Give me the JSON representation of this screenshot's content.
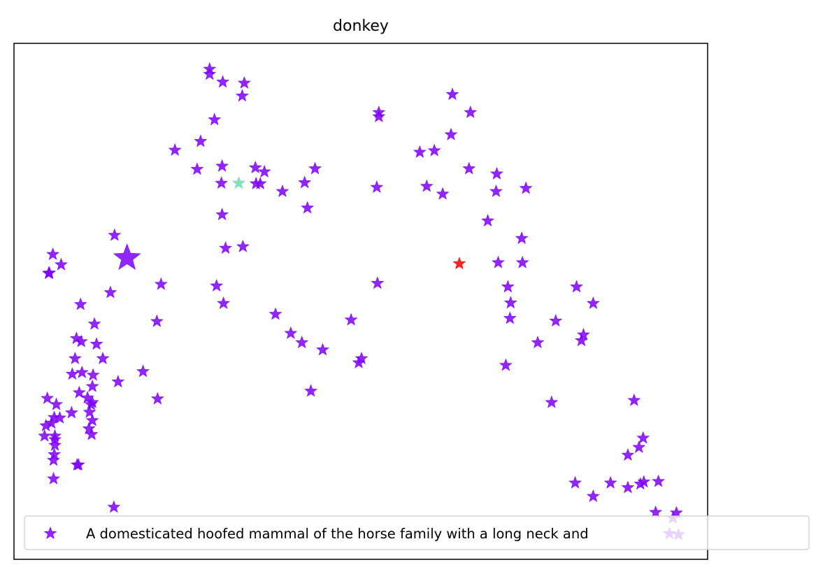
{
  "chart_data": {
    "type": "scatter",
    "title": "donkey",
    "xlabel": "",
    "ylabel": "",
    "ticks_visible": false,
    "legend_placement": "lower center",
    "xlim": [
      0,
      100
    ],
    "ylim": [
      0,
      100
    ],
    "series": [
      {
        "name": "A domesticated hoofed mammal of the horse family with a long neck and",
        "marker": "star",
        "color": "#7f00ff",
        "points": [
          [
            28.2,
            95.0
          ],
          [
            28.2,
            94.0
          ],
          [
            30.1,
            92.5
          ],
          [
            33.2,
            92.3
          ],
          [
            32.9,
            89.8
          ],
          [
            28.9,
            85.2
          ],
          [
            23.2,
            79.3
          ],
          [
            26.9,
            81.0
          ],
          [
            26.4,
            75.6
          ],
          [
            30.0,
            76.2
          ],
          [
            29.9,
            72.9
          ],
          [
            32.4,
            72.9
          ],
          [
            34.8,
            75.9
          ],
          [
            36.1,
            75.1
          ],
          [
            34.9,
            72.8
          ],
          [
            35.5,
            72.8
          ],
          [
            38.7,
            71.3
          ],
          [
            41.9,
            73.0
          ],
          [
            43.4,
            75.7
          ],
          [
            42.3,
            68.1
          ],
          [
            30.0,
            66.8
          ],
          [
            30.5,
            60.3
          ],
          [
            33.0,
            60.6
          ],
          [
            29.2,
            53.0
          ],
          [
            30.2,
            49.6
          ],
          [
            37.7,
            47.5
          ],
          [
            41.5,
            42.0
          ],
          [
            39.9,
            43.8
          ],
          [
            44.5,
            40.6
          ],
          [
            52.3,
            72.1
          ],
          [
            52.6,
            86.6
          ],
          [
            52.6,
            85.8
          ],
          [
            63.2,
            90.1
          ],
          [
            65.8,
            86.6
          ],
          [
            63.0,
            82.3
          ],
          [
            58.5,
            78.9
          ],
          [
            60.6,
            79.2
          ],
          [
            65.6,
            75.7
          ],
          [
            69.6,
            74.7
          ],
          [
            69.5,
            71.3
          ],
          [
            73.8,
            71.9
          ],
          [
            59.5,
            72.3
          ],
          [
            61.8,
            70.8
          ],
          [
            68.3,
            65.6
          ],
          [
            73.2,
            62.2
          ],
          [
            69.8,
            57.5
          ],
          [
            73.3,
            57.5
          ],
          [
            71.2,
            52.8
          ],
          [
            71.6,
            49.7
          ],
          [
            71.5,
            46.7
          ],
          [
            75.5,
            42.0
          ],
          [
            78.1,
            46.2
          ],
          [
            81.1,
            52.8
          ],
          [
            83.5,
            49.6
          ],
          [
            82.1,
            43.5
          ],
          [
            81.8,
            42.4
          ],
          [
            70.9,
            37.6
          ],
          [
            77.5,
            30.4
          ],
          [
            89.4,
            30.8
          ],
          [
            90.7,
            23.5
          ],
          [
            90.1,
            21.7
          ],
          [
            88.5,
            20.2
          ],
          [
            80.9,
            14.8
          ],
          [
            83.5,
            12.2
          ],
          [
            86.0,
            14.8
          ],
          [
            88.5,
            13.9
          ],
          [
            90.3,
            14.6
          ],
          [
            90.8,
            15.0
          ],
          [
            92.9,
            15.1
          ],
          [
            92.5,
            9.1
          ],
          [
            95.0,
            8.0
          ],
          [
            95.5,
            9.0
          ],
          [
            94.5,
            5.0
          ],
          [
            95.8,
            4.8
          ],
          [
            52.4,
            53.5
          ],
          [
            48.6,
            46.4
          ],
          [
            50.1,
            38.9
          ],
          [
            49.7,
            38.1
          ],
          [
            42.8,
            32.6
          ],
          [
            21.2,
            53.3
          ],
          [
            20.6,
            46.1
          ],
          [
            18.6,
            36.4
          ],
          [
            20.7,
            31.1
          ],
          [
            14.5,
            62.8
          ],
          [
            13.9,
            51.7
          ],
          [
            15.0,
            34.4
          ],
          [
            9.6,
            49.4
          ],
          [
            11.6,
            45.6
          ],
          [
            9.7,
            42.2
          ],
          [
            11.9,
            41.7
          ],
          [
            12.8,
            38.9
          ],
          [
            9.0,
            42.8
          ],
          [
            8.8,
            38.9
          ],
          [
            8.4,
            35.9
          ],
          [
            9.8,
            36.2
          ],
          [
            11.4,
            35.7
          ],
          [
            11.3,
            33.5
          ],
          [
            9.4,
            32.3
          ],
          [
            10.6,
            31.3
          ],
          [
            11.3,
            30.4
          ],
          [
            11.1,
            30.0
          ],
          [
            10.9,
            28.5
          ],
          [
            11.3,
            26.9
          ],
          [
            10.8,
            25.3
          ],
          [
            11.2,
            24.2
          ],
          [
            4.8,
            31.2
          ],
          [
            6.1,
            30.0
          ],
          [
            6.6,
            27.4
          ],
          [
            5.8,
            27.5
          ],
          [
            5.4,
            26.4
          ],
          [
            4.6,
            25.9
          ],
          [
            8.3,
            28.4
          ],
          [
            5.9,
            23.9
          ],
          [
            4.4,
            23.9
          ],
          [
            5.9,
            23.2
          ],
          [
            5.8,
            20.3
          ],
          [
            5.9,
            22.1
          ],
          [
            5.7,
            19.2
          ],
          [
            9.3,
            18.3
          ],
          [
            5.7,
            15.6
          ],
          [
            9.1,
            18.3
          ],
          [
            5.6,
            59.1
          ],
          [
            6.8,
            57.1
          ],
          [
            5.1,
            55.5
          ],
          [
            5.0,
            55.4
          ],
          [
            14.4,
            10.1
          ]
        ]
      }
    ],
    "highlight_points": [
      {
        "x": 16.3,
        "y": 58.4,
        "color": "#7f00ff",
        "size": "large"
      },
      {
        "x": 32.4,
        "y": 72.9,
        "color": "#80ffb4",
        "size": "normal"
      },
      {
        "x": 64.2,
        "y": 57.3,
        "color": "#ff0000",
        "size": "normal"
      }
    ]
  }
}
